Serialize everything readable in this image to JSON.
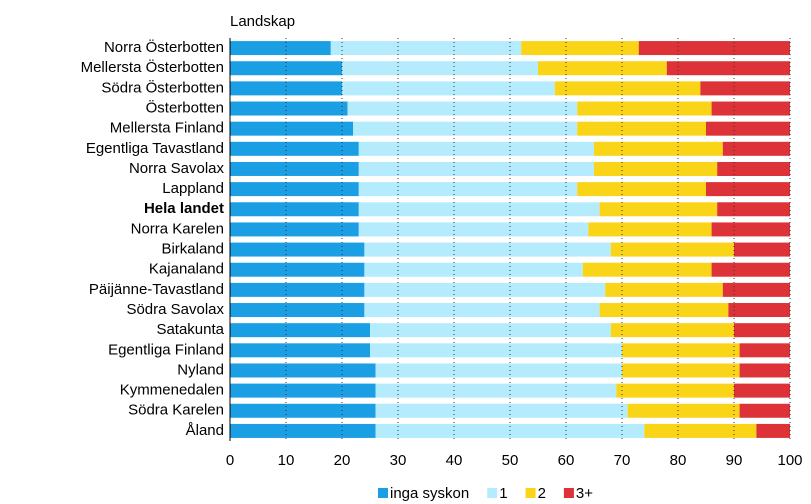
{
  "chart_data": {
    "type": "stacked_barh",
    "y_label": "Landskap",
    "categories": [
      "Norra Österbotten",
      "Mellersta Österbotten",
      "Södra Österbotten",
      "Österbotten",
      "Mellersta Finland",
      "Egentliga Tavastland",
      "Norra Savolax",
      "Lappland",
      "Hela landet",
      "Norra Karelen",
      "Birkaland",
      "Kajanaland",
      "Päijänne-Tavastland",
      "Södra Savolax",
      "Satakunta",
      "Egentliga Finland",
      "Nyland",
      "Kymmenedalen",
      "Södra Karelen",
      "Åland"
    ],
    "emphasized_categories": [
      "Hela landet"
    ],
    "series": [
      {
        "name": "inga syskon",
        "color": "#1a9fe5",
        "values": [
          18,
          20,
          20,
          21,
          22,
          23,
          23,
          23,
          23,
          23,
          24,
          24,
          24,
          24,
          25,
          25,
          26,
          26,
          26,
          26
        ]
      },
      {
        "name": "1",
        "color": "#b5ecfd",
        "values": [
          34,
          35,
          38,
          41,
          40,
          42,
          42,
          39,
          43,
          41,
          44,
          39,
          43,
          42,
          43,
          45,
          44,
          43,
          45,
          48
        ]
      },
      {
        "name": "2",
        "color": "#fad417",
        "values": [
          21,
          23,
          26,
          24,
          23,
          23,
          22,
          23,
          21,
          22,
          22,
          23,
          21,
          23,
          22,
          21,
          21,
          21,
          20,
          20
        ]
      },
      {
        "name": "3+",
        "color": "#dc3238",
        "values": [
          27,
          22,
          16,
          14,
          15,
          12,
          13,
          15,
          13,
          14,
          10,
          14,
          12,
          11,
          10,
          9,
          9,
          10,
          9,
          6
        ]
      }
    ],
    "xlim": [
      0,
      100
    ],
    "xticks": [
      0,
      10,
      20,
      30,
      40,
      50,
      60,
      70,
      80,
      90,
      100
    ],
    "grid": true,
    "legend": "bottom"
  }
}
